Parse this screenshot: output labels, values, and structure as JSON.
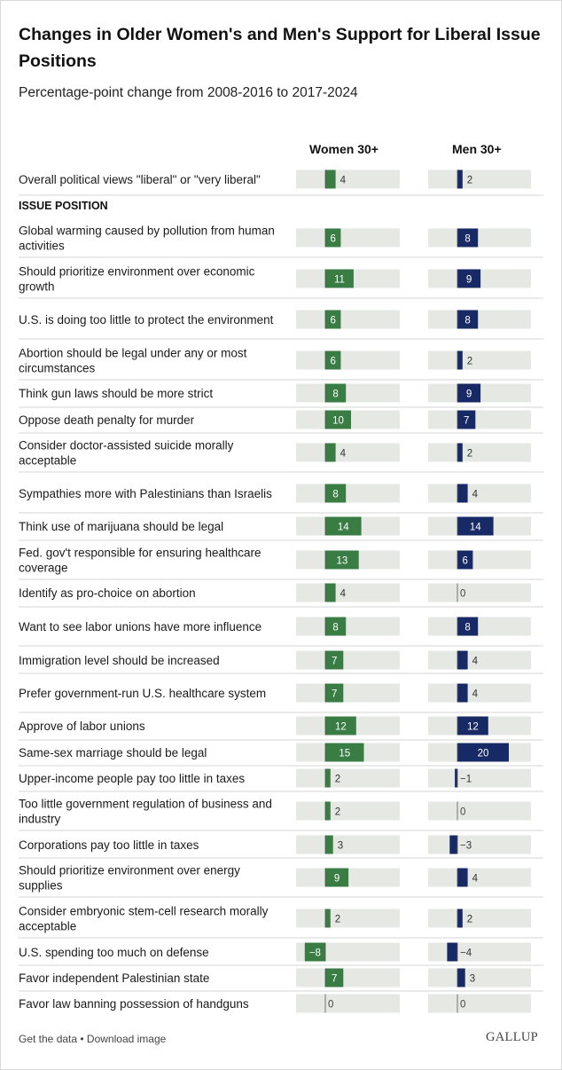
{
  "colors": {
    "women": "#3a7d44",
    "men": "#182a66",
    "track": "#e6e8e3",
    "divider": "#d6d6d6",
    "zero": "#555555"
  },
  "chart_data": {
    "type": "bar",
    "title": "Changes in Older Women's and Men's Support for Liberal Issue Positions",
    "subtitle": "Percentage-point change from 2008-2016 to 2017-2024",
    "section_label": "ISSUE POSITION",
    "xlim": [
      -10,
      30
    ],
    "categories": [
      "Overall political views \"liberal\" or \"very liberal\"",
      "Global warming caused by pollution from human activities",
      "Should prioritize environment over economic growth",
      "U.S. is doing too little to protect the environment",
      "Abortion should be legal under any or most circumstances",
      "Think gun laws should be more strict",
      "Oppose death penalty for murder",
      "Consider doctor-assisted suicide morally acceptable",
      "Sympathies more with Palestinians than Israelis",
      "Think use of marijuana should be legal",
      "Fed. gov't responsible for ensuring healthcare coverage",
      "Identify as pro-choice on abortion",
      "Want to see labor unions have more influence",
      "Immigration level should be increased",
      "Prefer government-run U.S. healthcare system",
      "Approve of labor unions",
      "Same-sex marriage should be legal",
      "Upper-income people pay too little in taxes",
      "Too little government regulation of business and industry",
      "Corporations pay too little in taxes",
      "Should prioritize environment over energy supplies",
      "Consider embryonic stem-cell research morally acceptable",
      "U.S. spending too much on defense",
      "Favor independent Palestinian state",
      "Favor law banning possession of handguns"
    ],
    "series": [
      {
        "name": "Women 30+",
        "values": [
          4,
          6,
          11,
          6,
          6,
          8,
          10,
          4,
          8,
          14,
          13,
          4,
          8,
          7,
          7,
          12,
          15,
          2,
          2,
          3,
          9,
          2,
          -8,
          7,
          0
        ]
      },
      {
        "name": "Men 30+",
        "values": [
          2,
          8,
          9,
          8,
          2,
          9,
          7,
          2,
          4,
          14,
          6,
          0,
          8,
          4,
          4,
          12,
          20,
          -1,
          0,
          -3,
          4,
          2,
          -4,
          3,
          0
        ]
      }
    ],
    "value_labels": {
      "Women 30+": [
        "4",
        "6",
        "11",
        "6",
        "6",
        "8",
        "10",
        "4",
        "8",
        "14",
        "13",
        "4",
        "8",
        "7",
        "7",
        "12",
        "15",
        "2",
        "2",
        "3",
        "9",
        "2",
        "−8",
        "7",
        "0"
      ],
      "Men 30+": [
        "2",
        "8",
        "9",
        "8",
        "2",
        "9",
        "7",
        "2",
        "4",
        "14",
        "6",
        "0",
        "8",
        "4",
        "4",
        "12",
        "20",
        "−1",
        "0",
        "−3",
        "4",
        "2",
        "−4",
        "3",
        "0"
      ]
    }
  },
  "footer": {
    "get_data": "Get the data",
    "separator": " • ",
    "download": "Download image",
    "brand": "GALLUP"
  }
}
